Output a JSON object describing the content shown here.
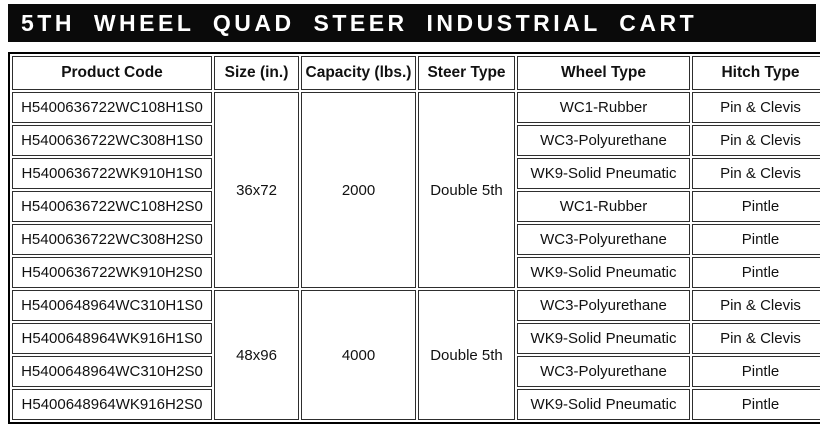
{
  "title": "5TH WHEEL QUAD STEER INDUSTRIAL CART",
  "colors": {
    "title_bar_bg": "#0a0a0a",
    "title_text": "#ffffff",
    "table_border": "#000000",
    "cell_border": "#2e2e2e",
    "cell_text": "#111111",
    "page_bg": "#ffffff"
  },
  "table": {
    "headers": [
      "Product Code",
      "Size (in.)",
      "Capacity (lbs.)",
      "Steer Type",
      "Wheel Type",
      "Hitch Type"
    ],
    "groups": [
      {
        "size": "36x72",
        "capacity": "2000",
        "steer_type": "Double 5th",
        "rows": [
          {
            "product_code": "H5400636722WC108H1S0",
            "wheel_type": "WC1-Rubber",
            "hitch_type": "Pin & Clevis"
          },
          {
            "product_code": "H5400636722WC308H1S0",
            "wheel_type": "WC3-Polyurethane",
            "hitch_type": "Pin & Clevis"
          },
          {
            "product_code": "H5400636722WK910H1S0",
            "wheel_type": "WK9-Solid Pneumatic",
            "hitch_type": "Pin & Clevis"
          },
          {
            "product_code": "H5400636722WC108H2S0",
            "wheel_type": "WC1-Rubber",
            "hitch_type": "Pintle"
          },
          {
            "product_code": "H5400636722WC308H2S0",
            "wheel_type": "WC3-Polyurethane",
            "hitch_type": "Pintle"
          },
          {
            "product_code": "H5400636722WK910H2S0",
            "wheel_type": "WK9-Solid Pneumatic",
            "hitch_type": "Pintle"
          }
        ]
      },
      {
        "size": "48x96",
        "capacity": "4000",
        "steer_type": "Double 5th",
        "rows": [
          {
            "product_code": "H5400648964WC310H1S0",
            "wheel_type": "WC3-Polyurethane",
            "hitch_type": "Pin & Clevis"
          },
          {
            "product_code": "H5400648964WK916H1S0",
            "wheel_type": "WK9-Solid Pneumatic",
            "hitch_type": "Pin & Clevis"
          },
          {
            "product_code": "H5400648964WC310H2S0",
            "wheel_type": "WC3-Polyurethane",
            "hitch_type": "Pintle"
          },
          {
            "product_code": "H5400648964WK916H2S0",
            "wheel_type": "WK9-Solid Pneumatic",
            "hitch_type": "Pintle"
          }
        ]
      }
    ]
  }
}
